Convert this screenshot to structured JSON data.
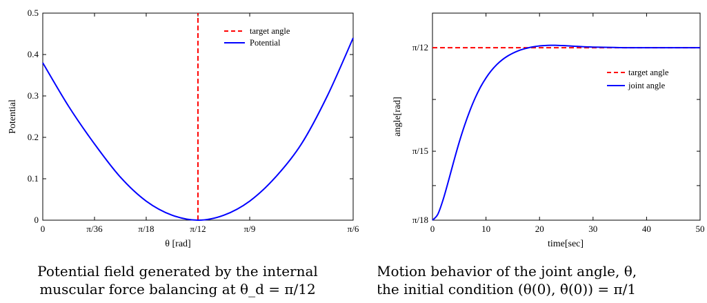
{
  "chart_data": [
    {
      "type": "line",
      "title": "",
      "xlabel": "θ [rad]",
      "ylabel": "Potential",
      "x_tick_labels": [
        "0",
        "π/36",
        "π/18",
        "π/12",
        "π/9",
        "π/6"
      ],
      "x_tick_values": [
        0,
        0.0873,
        0.1745,
        0.2618,
        0.3491,
        0.5236
      ],
      "y_tick_labels": [
        "0",
        "0.1",
        "0.2",
        "0.3",
        "0.4",
        "0.5"
      ],
      "y_tick_values": [
        0,
        0.1,
        0.2,
        0.3,
        0.4,
        0.5
      ],
      "xlim": [
        0,
        0.5236
      ],
      "ylim": [
        0,
        0.5
      ],
      "legend_position": "top-right",
      "series": [
        {
          "name": "target angle",
          "style": "dashed",
          "color": "#ff0000",
          "x": [
            0.2618,
            0.2618
          ],
          "y": [
            0,
            0.5
          ]
        },
        {
          "name": "Potential",
          "style": "solid",
          "color": "#0000ff",
          "x": [
            0,
            0.0436,
            0.0873,
            0.1309,
            0.1745,
            0.2182,
            0.2618,
            0.3054,
            0.3491,
            0.3927,
            0.4363,
            0.48,
            0.5236
          ],
          "y": [
            0.38,
            0.275,
            0.184,
            0.104,
            0.046,
            0.012,
            0.0,
            0.012,
            0.046,
            0.104,
            0.184,
            0.3,
            0.44
          ]
        }
      ]
    },
    {
      "type": "line",
      "title": "",
      "xlabel": "time[sec]",
      "ylabel": "angle[rad]",
      "x_tick_labels": [
        "0",
        "10",
        "20",
        "30",
        "40",
        "50"
      ],
      "x_tick_values": [
        0,
        10,
        20,
        30,
        40,
        50
      ],
      "y_tick_labels": [
        "π/18",
        "π/15",
        "π/12"
      ],
      "y_tick_values": [
        0.1745,
        0.2094,
        0.2618
      ],
      "xlim": [
        0,
        50
      ],
      "ylim": [
        0.1745,
        0.2793
      ],
      "legend_position": "right",
      "series": [
        {
          "name": "target angle",
          "style": "dashed",
          "color": "#ff0000",
          "x": [
            0,
            50
          ],
          "y": [
            0.2618,
            0.2618
          ]
        },
        {
          "name": "joint angle",
          "style": "solid",
          "color": "#0000ff",
          "x": [
            0,
            1,
            2,
            3,
            4,
            5,
            6,
            7,
            8,
            9,
            10,
            11,
            12,
            13,
            14,
            15,
            16,
            17,
            18,
            19,
            20,
            21,
            22,
            23,
            24,
            25,
            26,
            27,
            28,
            29,
            30,
            32,
            34,
            36,
            38,
            40,
            45,
            50
          ],
          "y": [
            0.1745,
            0.1775,
            0.185,
            0.1945,
            0.2045,
            0.214,
            0.2225,
            0.23,
            0.2365,
            0.242,
            0.2465,
            0.2502,
            0.2532,
            0.2556,
            0.2575,
            0.259,
            0.2602,
            0.2611,
            0.2618,
            0.2623,
            0.2627,
            0.2629,
            0.263,
            0.263,
            0.2629,
            0.2628,
            0.2626,
            0.2625,
            0.2623,
            0.2622,
            0.2621,
            0.262,
            0.2619,
            0.2618,
            0.2618,
            0.2618,
            0.2618,
            0.2618
          ]
        }
      ]
    }
  ],
  "captions": {
    "left_line1": "Potential field generated by the internal",
    "left_line2": "muscular force balancing at θ_d = π/12",
    "right_line1": "Motion behavior of the joint angle, θ,",
    "right_line2": "the initial condition (θ(0), θ̇(0)) = π/1"
  }
}
